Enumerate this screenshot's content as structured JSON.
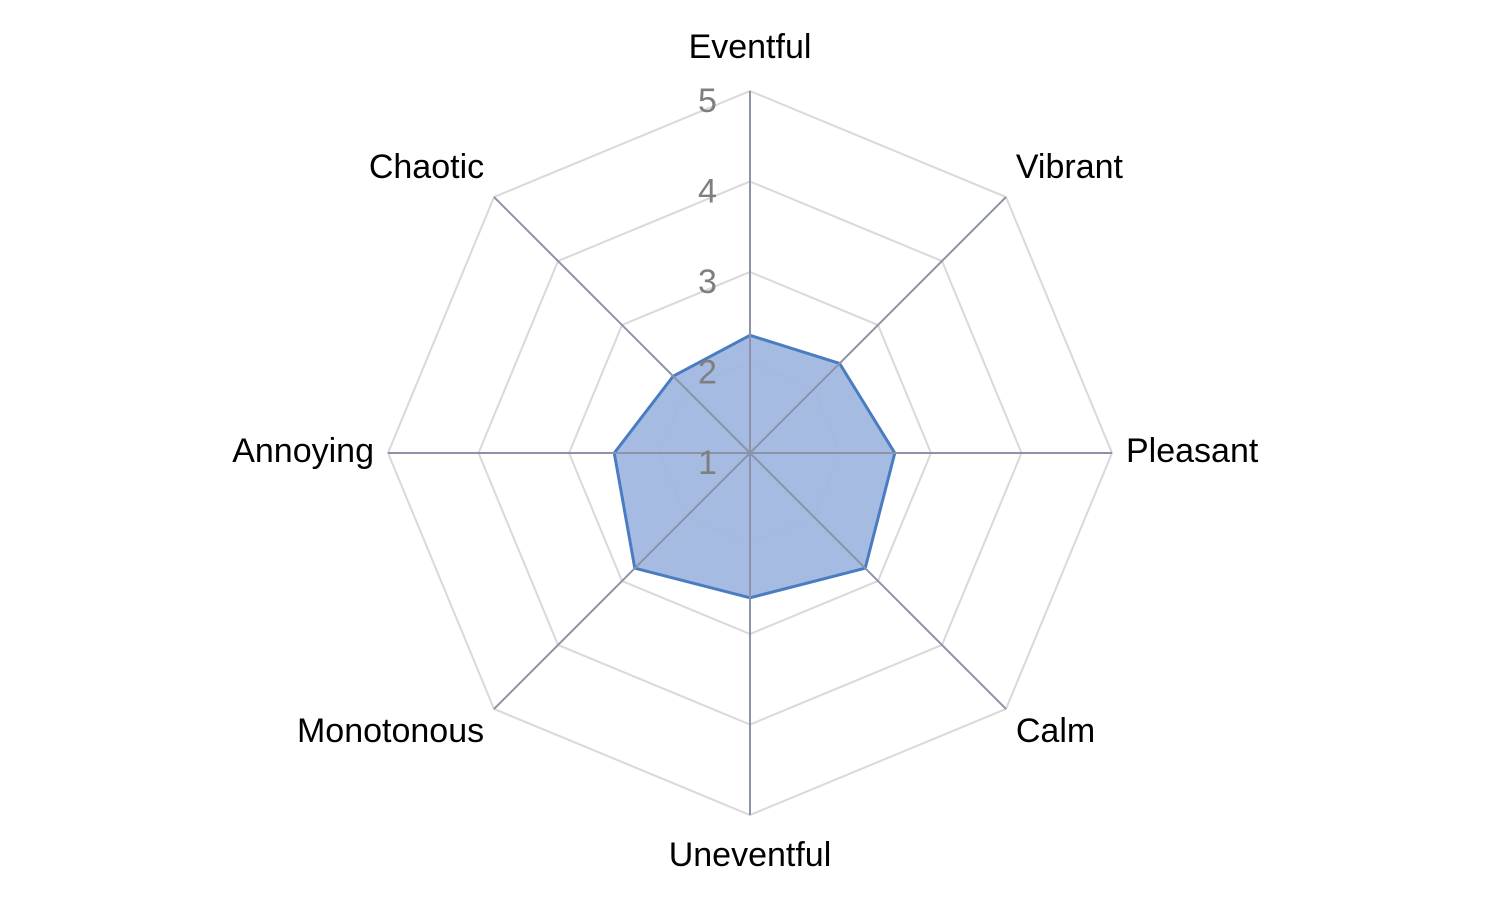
{
  "chart_data": {
    "type": "radar",
    "categories": [
      "Eventful",
      "Vibrant",
      "Pleasant",
      "Calm",
      "Uneventful",
      "Monotonous",
      "Annoying",
      "Chaotic"
    ],
    "series": [
      {
        "values": [
          2.3,
          2.4,
          2.6,
          2.8,
          2.6,
          2.8,
          2.5,
          2.2
        ]
      }
    ],
    "rlim": [
      1,
      5
    ],
    "ticks": [
      "1",
      "2",
      "3",
      "4",
      "5"
    ],
    "colors": {
      "fill": "#a0b7e0",
      "stroke": "#4a7cc1",
      "grid": "#d9d9d9",
      "spoke": "#8c93a8",
      "tick_text": "#7f7f7f"
    },
    "grid": true,
    "legend": "none"
  }
}
